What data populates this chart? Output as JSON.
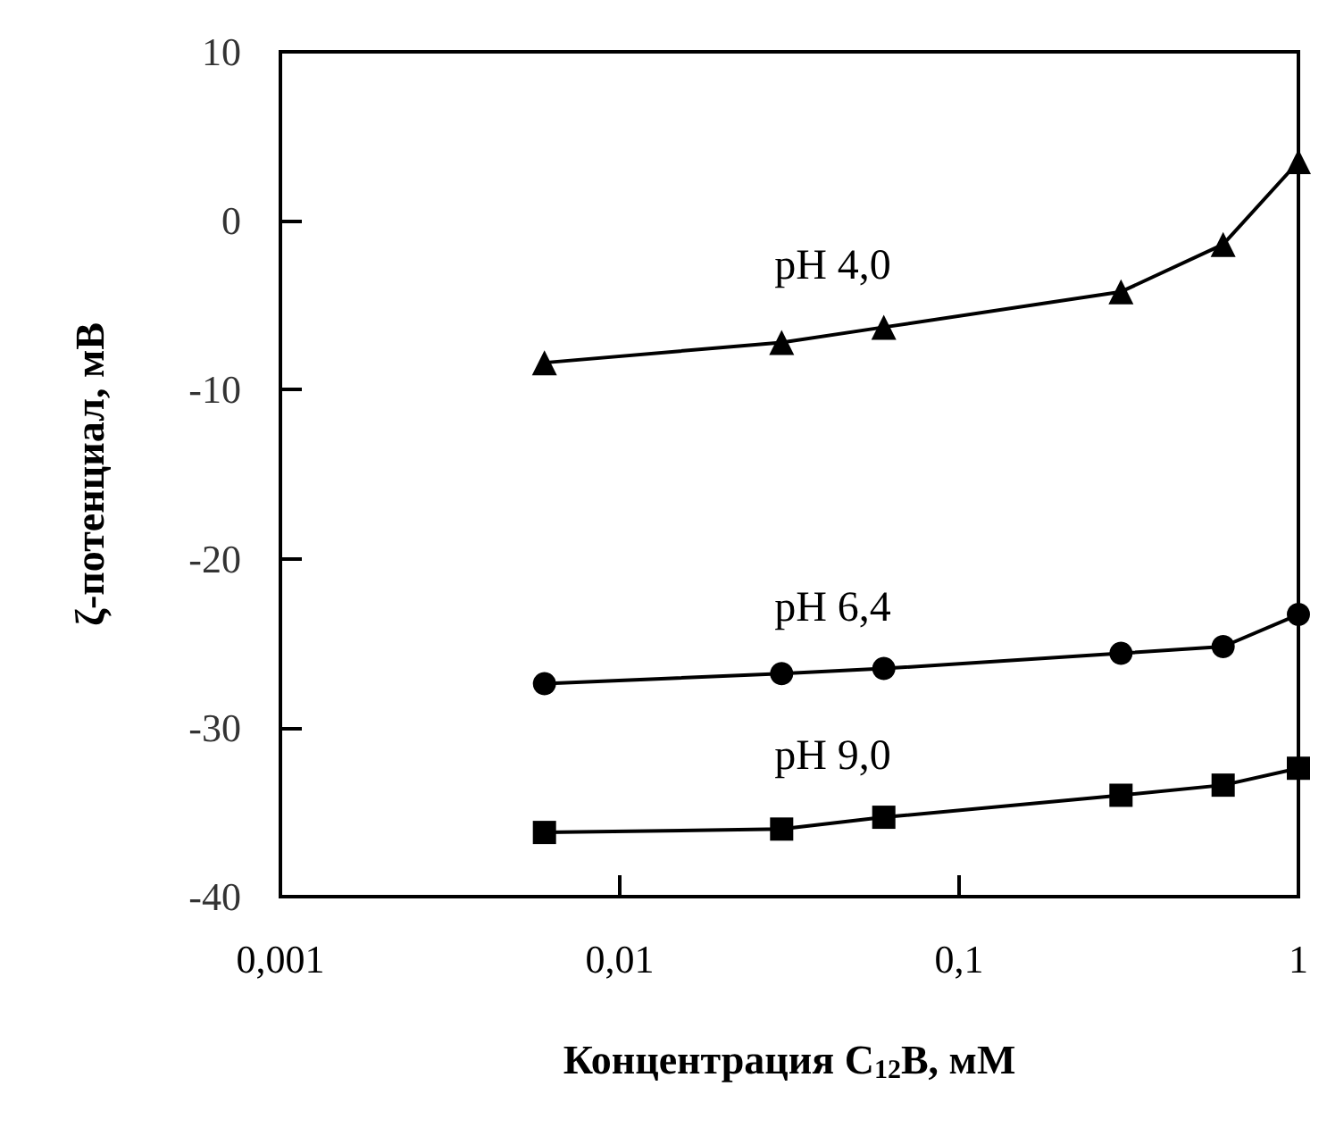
{
  "chart_data": {
    "type": "line",
    "xlabel": "Концентрация C$_{12}$B, мМ",
    "ylabel": "ζ-потенциал, мВ",
    "log": "x",
    "line_style": "solid",
    "xlim": [
      0.001,
      1
    ],
    "xticks": [
      {
        "value": 0.001,
        "label": "0,001"
      },
      {
        "value": 0.01,
        "label": "0,01"
      },
      {
        "value": 0.1,
        "label": "0,1"
      },
      1
    ],
    "ylim": [
      -40,
      10
    ],
    "yticks": [
      -40,
      -30,
      -20,
      -10,
      0,
      10
    ],
    "x": [
      0.006,
      0.03,
      0.06,
      0.3,
      0.6,
      1
    ],
    "series": [
      {
        "color": "#000000",
        "marker": "triangle",
        "values": [
          -8.4,
          -7.2,
          -6.3,
          -4.2,
          -1.4,
          3.5
        ]
      },
      {
        "color": "#000000",
        "marker": "circle",
        "values": [
          -27.4,
          -26.8,
          -26.5,
          -25.6,
          -25.2,
          -23.3
        ]
      },
      {
        "color": "#000000",
        "marker": "square",
        "values": [
          -36.2,
          -36.0,
          -35.3,
          -34.0,
          -33.4,
          -32.4
        ]
      }
    ],
    "annotations": [
      "pH 4,0",
      "pH 6,4",
      "pH 9,0"
    ]
  }
}
